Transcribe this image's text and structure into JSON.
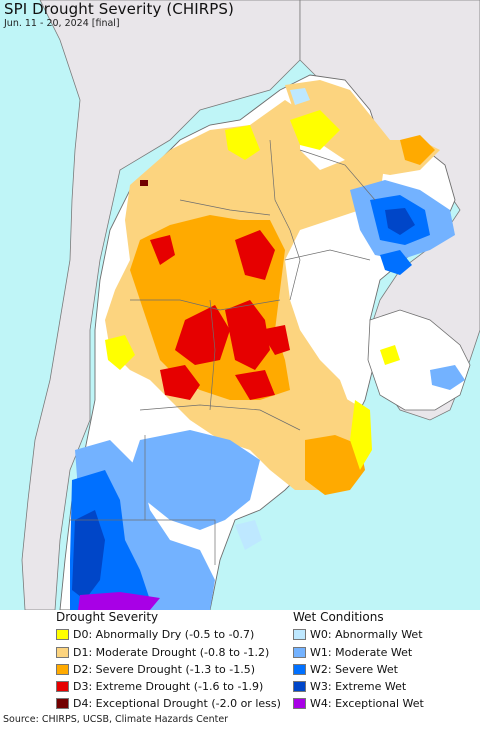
{
  "header": {
    "title": "SPI Drought Severity (CHIRPS)",
    "subtitle": "Jun. 11 - 20, 2024 [final]"
  },
  "colors": {
    "ocean": "#bff5f7",
    "land_outside": "#e9e6ea",
    "normal": "#ffffff",
    "border_line": "#6e6e6e",
    "d0": "#ffff00",
    "d1": "#fcd47f",
    "d2": "#ffaa00",
    "d3": "#e60000",
    "d4": "#730000",
    "w0": "#bee8ff",
    "w1": "#73b2ff",
    "w2": "#0070ff",
    "w3": "#0046c8",
    "w4": "#a800e6"
  },
  "legend": {
    "drought_heading": "Drought Severity",
    "wet_heading": "Wet Conditions",
    "drought_items": [
      {
        "label": "D0: Abnormally Dry (-0.5 to -0.7)",
        "color": "#ffff00"
      },
      {
        "label": "D1: Moderate Drought (-0.8 to -1.2)",
        "color": "#fcd47f"
      },
      {
        "label": "D2: Severe Drought (-1.3 to -1.5)",
        "color": "#ffaa00"
      },
      {
        "label": "D3: Extreme Drought (-1.6 to -1.9)",
        "color": "#e60000"
      },
      {
        "label": "D4: Exceptional Drought (-2.0 or less)",
        "color": "#730000"
      }
    ],
    "wet_items": [
      {
        "label": "W0: Abnormally Wet",
        "color": "#bee8ff"
      },
      {
        "label": "W1: Moderate Wet",
        "color": "#73b2ff"
      },
      {
        "label": "W2: Severe Wet",
        "color": "#0070ff"
      },
      {
        "label": "W3: Extreme Wet",
        "color": "#0046c8"
      },
      {
        "label": "W4: Exceptional Wet",
        "color": "#a800e6"
      }
    ]
  },
  "footer": {
    "source": "Source: CHIRPS, UCSB, Climate Hazards Center"
  }
}
